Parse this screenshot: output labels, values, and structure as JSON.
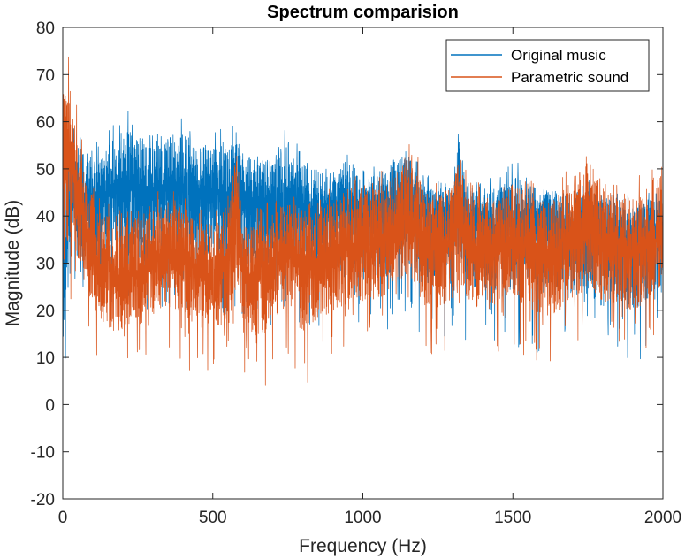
{
  "chart_data": {
    "type": "line",
    "title": "Spectrum comparision",
    "xlabel": "Frequency (Hz)",
    "ylabel": "Magnitude (dB)",
    "xlim": [
      0,
      2000
    ],
    "ylim": [
      -20,
      80
    ],
    "xticks": [
      0,
      500,
      1000,
      1500,
      2000
    ],
    "yticks": [
      -20,
      -10,
      0,
      10,
      20,
      30,
      40,
      50,
      60,
      70,
      80
    ],
    "grid": false,
    "legend_position": "top-right",
    "series": [
      {
        "name": "Original music",
        "color": "#0072BD",
        "x": [
          0,
          25,
          50,
          100,
          150,
          200,
          250,
          300,
          350,
          400,
          450,
          500,
          550,
          580,
          600,
          650,
          700,
          750,
          800,
          850,
          900,
          950,
          1000,
          1050,
          1100,
          1150,
          1200,
          1250,
          1300,
          1320,
          1350,
          1400,
          1450,
          1500,
          1550,
          1600,
          1650,
          1700,
          1750,
          1800,
          1850,
          1900,
          1950,
          2000
        ],
        "center": [
          30,
          42,
          45,
          44,
          45,
          47,
          46,
          45,
          47,
          46,
          44,
          45,
          44,
          47,
          44,
          42,
          43,
          44,
          42,
          40,
          40,
          42,
          39,
          40,
          42,
          44,
          40,
          38,
          40,
          44,
          40,
          39,
          38,
          38,
          40,
          39,
          38,
          37,
          38,
          36,
          36,
          35,
          36,
          36
        ],
        "top": [
          55,
          60,
          58,
          55,
          58,
          63,
          61,
          58,
          60,
          62,
          58,
          59,
          58,
          63,
          57,
          55,
          55,
          59,
          54,
          53,
          50,
          57,
          50,
          52,
          55,
          56,
          49,
          48,
          50,
          60,
          48,
          50,
          48,
          52,
          50,
          48,
          47,
          46,
          48,
          48,
          45,
          44,
          46,
          47
        ],
        "bottom": [
          0,
          15,
          20,
          18,
          18,
          20,
          18,
          18,
          20,
          18,
          16,
          18,
          18,
          20,
          18,
          16,
          16,
          20,
          16,
          15,
          14,
          20,
          14,
          14,
          16,
          18,
          12,
          12,
          14,
          18,
          12,
          12,
          10,
          12,
          12,
          10,
          10,
          10,
          12,
          8,
          10,
          8,
          10,
          12
        ]
      },
      {
        "name": "Parametric sound",
        "color": "#D95319",
        "x": [
          0,
          25,
          50,
          100,
          150,
          200,
          250,
          300,
          350,
          400,
          450,
          500,
          550,
          580,
          600,
          650,
          700,
          750,
          800,
          850,
          900,
          950,
          1000,
          1050,
          1100,
          1150,
          1200,
          1250,
          1300,
          1320,
          1350,
          1400,
          1450,
          1500,
          1550,
          1600,
          1650,
          1700,
          1750,
          1800,
          1850,
          1900,
          1950,
          2000
        ],
        "center": [
          48,
          52,
          45,
          30,
          27,
          26,
          28,
          30,
          32,
          32,
          28,
          27,
          30,
          44,
          28,
          27,
          30,
          33,
          30,
          30,
          32,
          33,
          34,
          35,
          37,
          40,
          35,
          33,
          35,
          40,
          33,
          33,
          33,
          35,
          33,
          32,
          33,
          35,
          38,
          34,
          34,
          32,
          34,
          35
        ],
        "top": [
          80,
          72,
          62,
          48,
          44,
          42,
          44,
          45,
          47,
          45,
          42,
          42,
          45,
          58,
          42,
          42,
          44,
          48,
          45,
          45,
          47,
          48,
          49,
          50,
          52,
          58,
          50,
          48,
          50,
          56,
          48,
          48,
          48,
          52,
          48,
          47,
          48,
          52,
          58,
          50,
          50,
          48,
          50,
          54
        ],
        "bottom": [
          22,
          20,
          18,
          12,
          5,
          8,
          10,
          10,
          12,
          8,
          5,
          8,
          5,
          10,
          5,
          0,
          8,
          10,
          2,
          8,
          10,
          12,
          12,
          10,
          15,
          18,
          10,
          10,
          12,
          15,
          10,
          10,
          10,
          12,
          10,
          8,
          8,
          10,
          15,
          12,
          10,
          10,
          12,
          18
        ]
      }
    ]
  }
}
